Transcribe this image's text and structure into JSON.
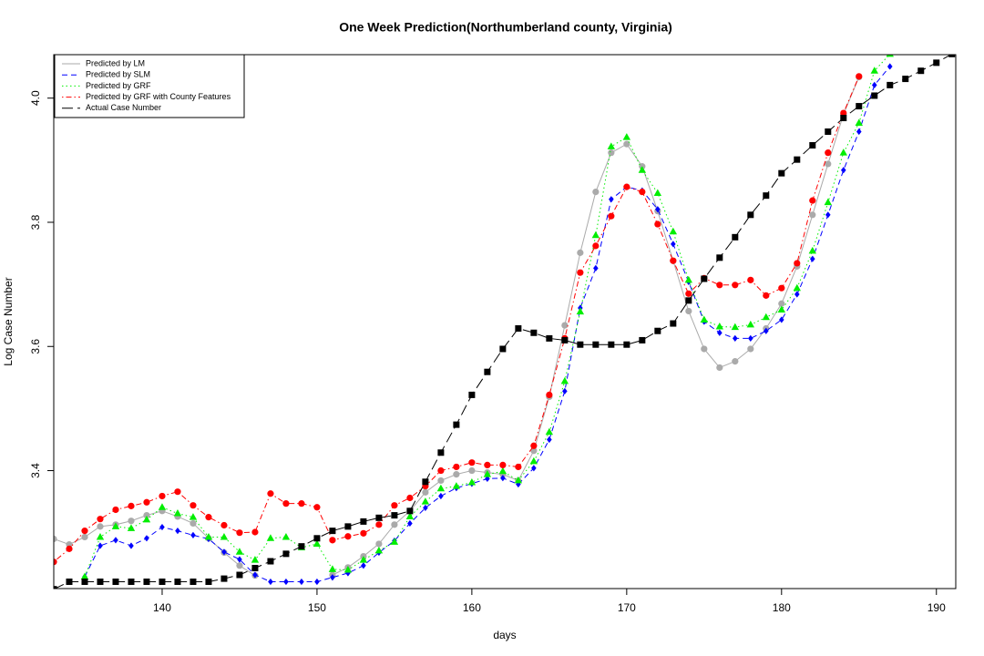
{
  "chart_data": {
    "type": "line",
    "title": "One Week Prediction(Northumberland county, Virginia)",
    "x_label": "days",
    "y_label": "Log Case Number",
    "xlim": [
      133,
      191.25
    ],
    "ylim": [
      3.21,
      4.07
    ],
    "xticks": [
      140,
      150,
      160,
      170,
      180,
      190
    ],
    "yticks": [
      3.4,
      3.6,
      3.8,
      {
        "value": 4,
        "label": "4.0"
      }
    ],
    "legend": "top-left",
    "x": [
      133,
      134,
      135,
      136,
      137,
      138,
      139,
      140,
      141,
      142,
      143,
      144,
      145,
      146,
      147,
      148,
      149,
      150,
      151,
      152,
      153,
      154,
      155,
      156,
      157,
      158,
      159,
      160,
      161,
      162,
      163,
      164,
      165,
      166,
      167,
      168,
      169,
      170,
      171,
      172,
      173,
      174,
      175,
      176,
      177,
      178,
      179,
      180,
      181,
      182,
      183,
      184,
      185,
      186,
      187,
      188,
      189,
      190,
      191
    ],
    "series": [
      {
        "name": "Predicted by LM",
        "color": "#aaaaaa",
        "linestyle": "solid",
        "marker": "circle",
        "values": [
          3.29,
          3.281,
          3.293,
          3.31,
          3.313,
          3.319,
          3.328,
          3.335,
          3.326,
          3.315,
          3.291,
          3.268,
          3.247,
          3.231,
          null,
          null,
          null,
          null,
          3.232,
          3.244,
          3.262,
          3.282,
          3.313,
          3.335,
          3.365,
          3.384,
          3.394,
          3.4,
          3.397,
          3.394,
          3.384,
          3.432,
          3.519,
          3.634,
          3.751,
          3.849,
          3.912,
          3.926,
          3.89,
          3.818,
          3.738,
          3.657,
          3.596,
          3.566,
          3.576,
          3.596,
          3.629,
          3.669,
          3.729,
          3.812,
          3.894,
          3.974,
          4.034,
          null,
          null,
          null,
          null,
          null,
          null
        ]
      },
      {
        "name": "Predicted by SLM",
        "color": "#0000ff",
        "linestyle": "dashed",
        "marker": "diamond",
        "values": [
          null,
          null,
          3.229,
          3.279,
          3.288,
          3.279,
          3.291,
          3.309,
          3.303,
          3.296,
          3.29,
          3.269,
          3.257,
          3.232,
          3.221,
          3.221,
          3.221,
          3.221,
          3.228,
          3.235,
          3.247,
          3.268,
          3.287,
          3.315,
          3.34,
          3.359,
          3.372,
          3.379,
          3.387,
          3.388,
          3.378,
          3.404,
          3.45,
          3.528,
          3.662,
          3.726,
          3.837,
          3.857,
          3.851,
          3.821,
          3.765,
          3.704,
          3.64,
          3.622,
          3.613,
          3.613,
          3.625,
          3.643,
          3.684,
          3.741,
          3.812,
          3.884,
          3.946,
          4.021,
          4.051,
          null,
          null,
          null,
          null
        ]
      },
      {
        "name": "Predicted by GRF",
        "color": "#00ee00",
        "linestyle": "dotted",
        "marker": "triangle",
        "values": [
          null,
          null,
          3.229,
          3.293,
          3.31,
          3.307,
          3.321,
          3.341,
          3.331,
          3.325,
          3.293,
          3.293,
          3.269,
          3.256,
          3.291,
          3.293,
          3.276,
          3.282,
          3.241,
          3.24,
          3.256,
          3.271,
          3.285,
          3.326,
          3.35,
          3.371,
          3.375,
          3.381,
          3.394,
          3.399,
          3.384,
          3.415,
          3.462,
          3.544,
          3.656,
          3.779,
          3.922,
          3.937,
          3.884,
          3.847,
          3.785,
          3.707,
          3.643,
          3.632,
          3.631,
          3.635,
          3.647,
          3.659,
          3.694,
          3.754,
          3.832,
          3.912,
          3.96,
          4.044,
          4.071,
          null,
          null,
          null,
          null
        ]
      },
      {
        "name": "Predicted by GRF with County Features",
        "color": "#ff0000",
        "linestyle": "dotdash",
        "marker": "circle",
        "values": [
          3.253,
          3.274,
          3.303,
          3.322,
          3.337,
          3.343,
          3.349,
          3.359,
          3.366,
          3.344,
          3.325,
          3.312,
          3.3,
          3.301,
          3.363,
          3.347,
          3.347,
          3.341,
          3.288,
          3.294,
          3.299,
          3.313,
          3.344,
          3.356,
          3.375,
          3.4,
          3.406,
          3.413,
          3.409,
          3.409,
          3.406,
          3.44,
          3.522,
          3.613,
          3.719,
          3.762,
          3.81,
          3.857,
          3.849,
          3.797,
          3.738,
          3.685,
          3.71,
          3.699,
          3.699,
          3.707,
          3.682,
          3.694,
          3.734,
          3.835,
          3.912,
          3.976,
          4.035,
          null,
          null,
          null,
          null,
          null,
          null
        ]
      },
      {
        "name": "Actual Case Number",
        "color": "#000000",
        "linestyle": "longdash",
        "marker": "square",
        "values": [
          3.209,
          3.221,
          3.221,
          3.221,
          3.221,
          3.221,
          3.221,
          3.221,
          3.221,
          3.221,
          3.221,
          3.226,
          3.232,
          3.243,
          3.254,
          3.266,
          3.278,
          3.291,
          3.303,
          3.31,
          3.318,
          3.324,
          3.328,
          3.335,
          3.382,
          3.429,
          3.474,
          3.522,
          3.559,
          3.596,
          3.629,
          3.622,
          3.613,
          3.61,
          3.603,
          3.603,
          3.603,
          3.603,
          3.61,
          3.625,
          3.637,
          3.674,
          3.709,
          3.743,
          3.776,
          3.812,
          3.843,
          3.879,
          3.901,
          3.924,
          3.946,
          3.968,
          3.987,
          4.004,
          4.021,
          4.031,
          4.044,
          4.057,
          4.071
        ]
      }
    ]
  }
}
